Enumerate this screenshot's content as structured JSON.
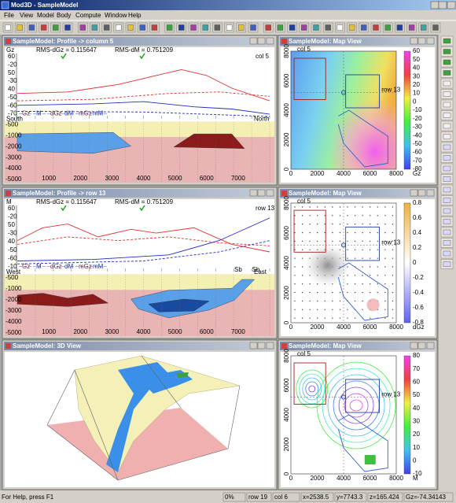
{
  "app": {
    "title": "Mod3D - SampleModel"
  },
  "menu": [
    "File",
    "View",
    "Model",
    "Body",
    "Compute",
    "Window",
    "Help"
  ],
  "profiles": [
    {
      "title": "SampleModel: Profile -> column  5",
      "field": "Gz",
      "rms_g": "RMS-dGz = 0.115647",
      "rms_m": "RMS-dM = 0.751209",
      "tag": "col 5",
      "ylabels": [
        "60",
        "-20",
        "50",
        "-30",
        "40",
        "-50",
        "-60",
        "-70"
      ],
      "legend": [
        "Gz",
        "M",
        "dGz",
        "dM",
        "mGz",
        "mM"
      ],
      "left": "South",
      "right": "North",
      "depth": [
        "-500",
        "-1000",
        "-2000",
        "-3000",
        "-4000",
        "-5000"
      ],
      "xlabels": [
        "1000",
        "2000",
        "3000",
        "4000",
        "5000",
        "6000",
        "7000"
      ],
      "marks": []
    },
    {
      "title": "SampleModel: Profile -> row  13",
      "field": "M",
      "rms_g": "RMS-dGz = 0.115647",
      "rms_m": "RMS-dM = 0.751209",
      "tag": "row 13",
      "ylabels": [
        "60",
        "-20",
        "50",
        "-30",
        "40",
        "-50",
        "-60",
        "-10"
      ],
      "legend": [
        "Gz",
        "M",
        "dGz",
        "dM",
        "mGz",
        "mM"
      ],
      "left": "West",
      "right": "East",
      "depth": [
        "-500",
        "-1000",
        "-2000",
        "-3000",
        "-4000",
        "-5000"
      ],
      "xlabels": [
        "1000",
        "2000",
        "3000",
        "4000",
        "5000",
        "6000",
        "7000"
      ],
      "marks": [
        "Sb",
        "Sb"
      ]
    }
  ],
  "maps": [
    {
      "title": "SampleModel: Map View",
      "col": "col 5",
      "row": "row 13",
      "unit": "Gz",
      "scale": [
        "60",
        "50",
        "40",
        "30",
        "20",
        "10",
        "0",
        "-10",
        "-20",
        "-30",
        "-40",
        "-50",
        "-60",
        "-70",
        "-80"
      ],
      "axis": [
        "0",
        "2000",
        "4000",
        "6000",
        "8000"
      ]
    },
    {
      "title": "SampleModel: Map View",
      "col": "col 5",
      "row": "row 13",
      "unit": "dGz",
      "scale": [
        "0.8",
        "0.6",
        "0.4",
        "0.2",
        "0",
        "-0.2",
        "-0.4",
        "-0.6",
        "-0.8"
      ],
      "axis": [
        "0",
        "2000",
        "4000",
        "6000",
        "8000"
      ]
    },
    {
      "title": "SampleModel: Map View",
      "col": "col 5",
      "row": "row 13",
      "unit": "M",
      "scale": [
        "80",
        "70",
        "60",
        "50",
        "40",
        "30",
        "20",
        "10",
        "0",
        "-10"
      ],
      "axis": [
        "0",
        "2000",
        "4000",
        "6000",
        "8000"
      ]
    }
  ],
  "view3d": {
    "title": "SampleModel: 3D View"
  },
  "status": [
    "For Help, press F1",
    "0%",
    "row 19",
    "col 6",
    "x=2538.5",
    "y=7743.3",
    "z=165.424",
    "Gz=-74.34143"
  ]
}
